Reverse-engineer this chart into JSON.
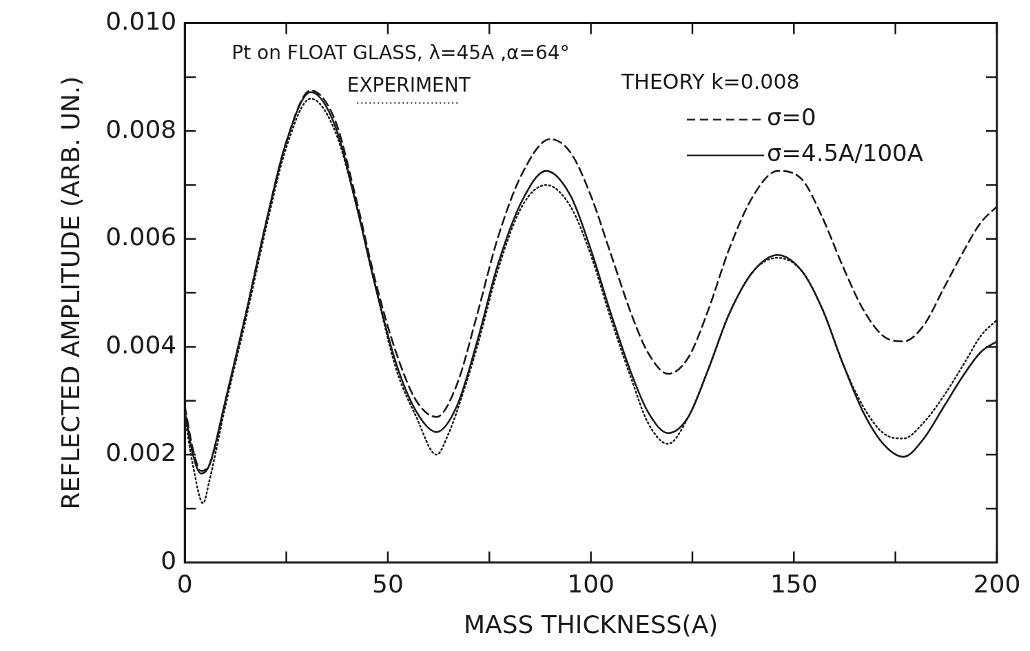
{
  "chart_data": {
    "type": "line",
    "title": "Pt on FLOAT GLASS, λ=45A ,α=64°",
    "xlabel": "MASS THICKNESS(A)",
    "ylabel": "REFLECTED AMPLITUDE (ARB. UN.)",
    "legend_title": "THEORY k=0.008",
    "legend": "top right",
    "grid": false,
    "marker": "none",
    "xlim": [
      0,
      200
    ],
    "xticks": [
      0,
      {
        "value": 25,
        "label": null
      },
      50,
      {
        "value": 75,
        "label": null
      },
      100,
      {
        "value": 125,
        "label": null
      },
      150,
      {
        "value": 175,
        "label": null
      },
      200
    ],
    "ylim": [
      0,
      0.01
    ],
    "yticks": [
      0,
      {
        "value": 0.001,
        "label": null
      },
      0.002,
      {
        "value": 0.003,
        "label": null
      },
      0.004,
      {
        "value": 0.005,
        "label": null
      },
      0.006,
      {
        "value": 0.007,
        "label": null
      },
      0.008,
      {
        "value": 0.009,
        "label": null
      },
      {
        "value": 0.01,
        "label": "0.010"
      }
    ],
    "series": [
      {
        "name": "EXPERIMENT",
        "color": "#1a1a1a",
        "line_style": "dotted",
        "x": [
          0,
          2,
          4.5,
          6,
          10,
          15,
          20,
          25,
          31,
          37,
          42,
          47,
          52,
          57,
          62,
          65,
          67,
          72,
          77,
          83,
          89,
          95,
          100,
          105,
          110,
          114,
          119,
          124,
          129,
          134,
          140,
          146,
          152,
          157,
          162,
          167,
          172,
          177,
          182,
          187,
          192,
          196,
          200
        ],
        "values": [
          0.0027,
          0.0018,
          0.0011,
          0.0015,
          0.0029,
          0.0045,
          0.0062,
          0.0077,
          0.0086,
          0.008,
          0.0067,
          0.0051,
          0.0036,
          0.0027,
          0.002,
          0.0024,
          0.0028,
          0.004,
          0.0054,
          0.0066,
          0.007,
          0.0066,
          0.0057,
          0.0045,
          0.0034,
          0.0026,
          0.0022,
          0.0027,
          0.0036,
          0.0046,
          0.0054,
          0.00565,
          0.0054,
          0.0047,
          0.0037,
          0.0029,
          0.0024,
          0.0023,
          0.0026,
          0.0031,
          0.0037,
          0.0042,
          0.0045
        ]
      },
      {
        "name": "σ=0",
        "color": "#1a1a1a",
        "line_style": "dashed",
        "x": [
          0,
          2,
          4,
          6,
          10,
          15,
          20,
          25,
          31,
          37,
          42,
          47,
          52,
          57,
          62,
          67,
          72,
          77,
          83,
          90,
          95,
          100,
          105,
          110,
          114,
          119,
          124,
          129,
          134,
          140,
          146,
          152,
          157,
          162,
          167,
          172,
          177,
          182,
          187,
          192,
          196,
          200
        ],
        "values": [
          0.0029,
          0.0021,
          0.0017,
          0.0018,
          0.003,
          0.0046,
          0.0063,
          0.0078,
          0.00875,
          0.0082,
          0.0068,
          0.0052,
          0.0039,
          0.003,
          0.0027,
          0.0033,
          0.0046,
          0.006,
          0.0072,
          0.00785,
          0.0076,
          0.0068,
          0.0057,
          0.0046,
          0.0039,
          0.0035,
          0.0038,
          0.0047,
          0.0058,
          0.0068,
          0.00726,
          0.0071,
          0.0064,
          0.0055,
          0.0047,
          0.0042,
          0.0041,
          0.0044,
          0.0051,
          0.0058,
          0.0063,
          0.0066
        ]
      },
      {
        "name": "σ=4.5A/100A",
        "color": "#1a1a1a",
        "line_style": "solid",
        "x": [
          0,
          2,
          4,
          6,
          10,
          15,
          20,
          25,
          31,
          37,
          42,
          47,
          52,
          57,
          62,
          67,
          72,
          77,
          83,
          89,
          95,
          100,
          105,
          110,
          114,
          119,
          124,
          129,
          134,
          140,
          146,
          152,
          157,
          162,
          167,
          172,
          177,
          182,
          187,
          192,
          196,
          200
        ],
        "values": [
          0.0028,
          0.002,
          0.00165,
          0.0018,
          0.003,
          0.0046,
          0.0063,
          0.0078,
          0.00872,
          0.0081,
          0.0067,
          0.0051,
          0.0037,
          0.0028,
          0.00242,
          0.0029,
          0.0041,
          0.0055,
          0.0067,
          0.00726,
          0.0068,
          0.0058,
          0.0046,
          0.0035,
          0.0028,
          0.0024,
          0.0027,
          0.0036,
          0.0046,
          0.0054,
          0.0057,
          0.0054,
          0.0047,
          0.0037,
          0.0028,
          0.0022,
          0.00196,
          0.0023,
          0.0029,
          0.0035,
          0.0039,
          0.0041
        ]
      }
    ]
  }
}
